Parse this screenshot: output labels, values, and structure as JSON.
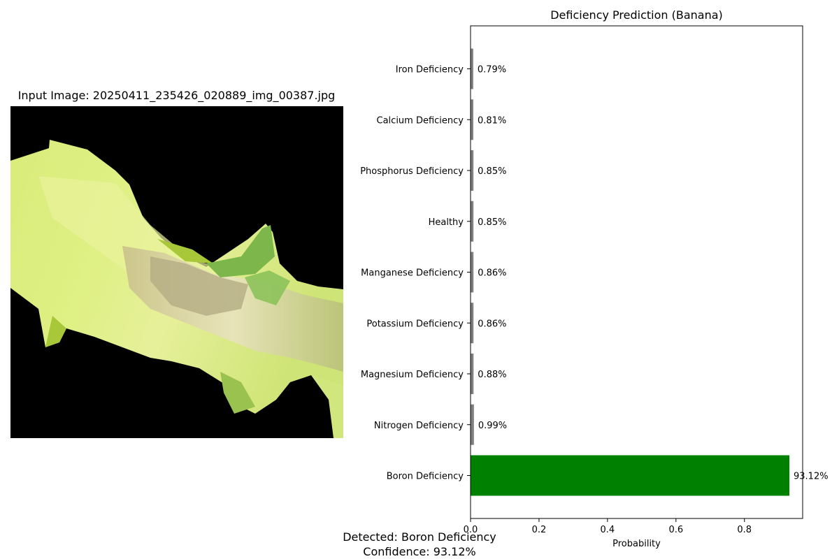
{
  "image_panel": {
    "title": "Input Image: 20250411_235426_020889_img_00387.jpg"
  },
  "chart_data": {
    "type": "bar",
    "orientation": "horizontal",
    "title": "Deficiency Prediction (Banana)",
    "xlabel": "Probability",
    "ylabel": "",
    "xlim": [
      0,
      0.97
    ],
    "xticks": [
      0.0,
      0.2,
      0.4,
      0.6,
      0.8
    ],
    "xtick_labels": [
      "0.0",
      "0.2",
      "0.4",
      "0.6",
      "0.8"
    ],
    "grid": false,
    "categories": [
      "Boron Deficiency",
      "Nitrogen Deficiency",
      "Magnesium Deficiency",
      "Potassium Deficiency",
      "Manganese Deficiency",
      "Healthy",
      "Phosphorus Deficiency",
      "Calcium Deficiency",
      "Iron Deficiency"
    ],
    "values": [
      0.9312,
      0.0099,
      0.0088,
      0.0086,
      0.0086,
      0.0085,
      0.0085,
      0.0081,
      0.0079
    ],
    "value_labels": [
      "93.12%",
      "0.99%",
      "0.88%",
      "0.86%",
      "0.86%",
      "0.85%",
      "0.85%",
      "0.81%",
      "0.79%"
    ],
    "colors": [
      "#008000",
      "#808080",
      "#808080",
      "#808080",
      "#808080",
      "#808080",
      "#808080",
      "#808080",
      "#808080"
    ]
  },
  "summary": {
    "detected": "Detected: Boron Deficiency",
    "confidence": "Confidence: 93.12%"
  }
}
